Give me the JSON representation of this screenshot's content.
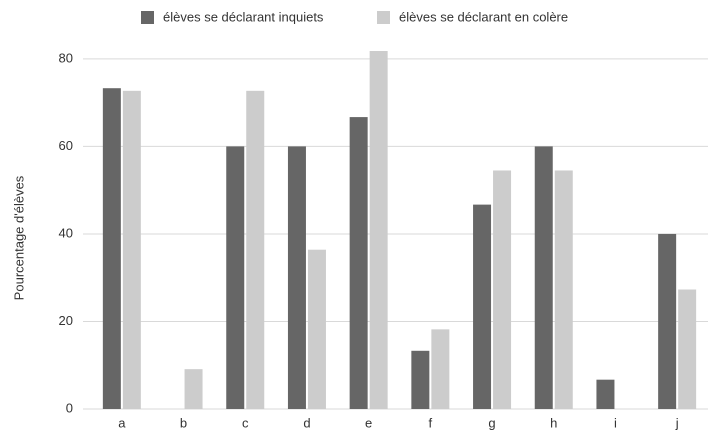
{
  "chart_data": {
    "type": "bar",
    "y_label": "Pourcentage d'élèves",
    "categories": [
      "a",
      "b",
      "c",
      "d",
      "e",
      "f",
      "g",
      "h",
      "i",
      "j"
    ],
    "series": [
      {
        "name": "élèves se déclarant inquiets",
        "color": "#666666",
        "values": [
          73.3,
          0,
          60,
          60,
          66.7,
          13.3,
          46.7,
          60,
          6.7,
          40
        ]
      },
      {
        "name": "élèves se déclarant en colère",
        "color": "#cccccc",
        "values": [
          72.7,
          9.1,
          72.7,
          36.4,
          81.8,
          18.2,
          54.5,
          54.5,
          0,
          27.3
        ]
      }
    ],
    "ylim": [
      0,
      85
    ],
    "yticks": [
      0,
      20,
      40,
      60,
      80
    ],
    "grid": true,
    "legend": "top"
  }
}
